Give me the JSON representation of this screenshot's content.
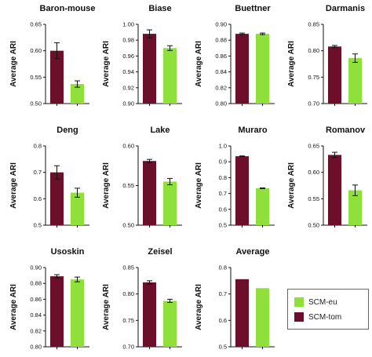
{
  "colors": {
    "SCM-tom": "#6b0f2a",
    "SCM-eu": "#8fe03a"
  },
  "legend": {
    "title": "",
    "items": [
      {
        "name": "SCM-eu"
      },
      {
        "name": "SCM-tom"
      }
    ]
  },
  "chart_data": [
    {
      "type": "bar",
      "title": "Baron-mouse",
      "xlabel": "",
      "ylabel": "Average ARI",
      "ylim": [
        0.5,
        0.65
      ],
      "yticks": [
        "0.50",
        "0.55",
        "0.60",
        "0.65"
      ],
      "grid": false,
      "series": [
        {
          "name": "SCM-tom",
          "value": 0.6,
          "error": 0.015
        },
        {
          "name": "SCM-eu",
          "value": 0.537,
          "error": 0.006
        }
      ]
    },
    {
      "type": "bar",
      "title": "Biase",
      "xlabel": "",
      "ylabel": "Average ARI",
      "ylim": [
        0.9,
        1.0
      ],
      "yticks": [
        "0.90",
        "0.92",
        "0.94",
        "0.96",
        "0.98",
        "1.00"
      ],
      "grid": false,
      "series": [
        {
          "name": "SCM-tom",
          "value": 0.988,
          "error": 0.005
        },
        {
          "name": "SCM-eu",
          "value": 0.97,
          "error": 0.003
        }
      ]
    },
    {
      "type": "bar",
      "title": "Buettner",
      "xlabel": "",
      "ylabel": "Average ARI",
      "ylim": [
        0.8,
        0.9
      ],
      "yticks": [
        "0.80",
        "0.82",
        "0.84",
        "0.86",
        "0.88",
        "0.90"
      ],
      "grid": false,
      "series": [
        {
          "name": "SCM-tom",
          "value": 0.888,
          "error": 0.001
        },
        {
          "name": "SCM-eu",
          "value": 0.888,
          "error": 0.001
        }
      ]
    },
    {
      "type": "bar",
      "title": "Darmanis",
      "xlabel": "",
      "ylabel": "Average ARI",
      "ylim": [
        0.7,
        0.85
      ],
      "yticks": [
        "0.70",
        "0.75",
        "0.80",
        "0.85"
      ],
      "grid": false,
      "series": [
        {
          "name": "SCM-tom",
          "value": 0.808,
          "error": 0.002
        },
        {
          "name": "SCM-eu",
          "value": 0.786,
          "error": 0.008
        }
      ]
    },
    {
      "type": "bar",
      "title": "Deng",
      "xlabel": "",
      "ylabel": "Average ARI",
      "ylim": [
        0.5,
        0.8
      ],
      "yticks": [
        "0.5",
        "0.6",
        "0.7",
        "0.8"
      ],
      "grid": false,
      "series": [
        {
          "name": "SCM-tom",
          "value": 0.7,
          "error": 0.025
        },
        {
          "name": "SCM-eu",
          "value": 0.623,
          "error": 0.017
        }
      ]
    },
    {
      "type": "bar",
      "title": "Lake",
      "xlabel": "",
      "ylabel": "Average ARI",
      "ylim": [
        0.5,
        0.6
      ],
      "yticks": [
        "0.50",
        "0.55",
        "0.60"
      ],
      "grid": false,
      "series": [
        {
          "name": "SCM-tom",
          "value": 0.581,
          "error": 0.002
        },
        {
          "name": "SCM-eu",
          "value": 0.555,
          "error": 0.004
        }
      ]
    },
    {
      "type": "bar",
      "title": "Muraro",
      "xlabel": "",
      "ylabel": "Average ARI",
      "ylim": [
        0.5,
        1.0
      ],
      "yticks": [
        "0.5",
        "0.6",
        "0.7",
        "0.8",
        "0.9",
        "1.0"
      ],
      "grid": false,
      "series": [
        {
          "name": "SCM-tom",
          "value": 0.935,
          "error": 0.002
        },
        {
          "name": "SCM-eu",
          "value": 0.733,
          "error": 0.002
        }
      ]
    },
    {
      "type": "bar",
      "title": "Romanov",
      "xlabel": "",
      "ylabel": "Average ARI",
      "ylim": [
        0.5,
        0.65
      ],
      "yticks": [
        "0.50",
        "0.55",
        "0.60",
        "0.65"
      ],
      "grid": false,
      "series": [
        {
          "name": "SCM-tom",
          "value": 0.633,
          "error": 0.005
        },
        {
          "name": "SCM-eu",
          "value": 0.566,
          "error": 0.01
        }
      ]
    },
    {
      "type": "bar",
      "title": "Usoskin",
      "xlabel": "",
      "ylabel": "Average ARI",
      "ylim": [
        0.8,
        0.9
      ],
      "yticks": [
        "0.80",
        "0.82",
        "0.84",
        "0.86",
        "0.88",
        "0.90"
      ],
      "grid": false,
      "series": [
        {
          "name": "SCM-tom",
          "value": 0.889,
          "error": 0.002
        },
        {
          "name": "SCM-eu",
          "value": 0.885,
          "error": 0.003
        }
      ]
    },
    {
      "type": "bar",
      "title": "Zeisel",
      "xlabel": "",
      "ylabel": "Average ARI",
      "ylim": [
        0.7,
        0.85
      ],
      "yticks": [
        "0.70",
        "0.75",
        "0.80",
        "0.85"
      ],
      "grid": false,
      "series": [
        {
          "name": "SCM-tom",
          "value": 0.822,
          "error": 0.003
        },
        {
          "name": "SCM-eu",
          "value": 0.787,
          "error": 0.003
        }
      ]
    },
    {
      "type": "bar",
      "title": "Average",
      "xlabel": "",
      "ylabel": "Average ARI",
      "ylim": [
        0.5,
        0.8
      ],
      "yticks": [
        "0.5",
        "0.6",
        "0.7",
        "0.8"
      ],
      "grid": false,
      "series": [
        {
          "name": "SCM-tom",
          "value": 0.756,
          "error": 0
        },
        {
          "name": "SCM-eu",
          "value": 0.722,
          "error": 0
        }
      ]
    }
  ]
}
